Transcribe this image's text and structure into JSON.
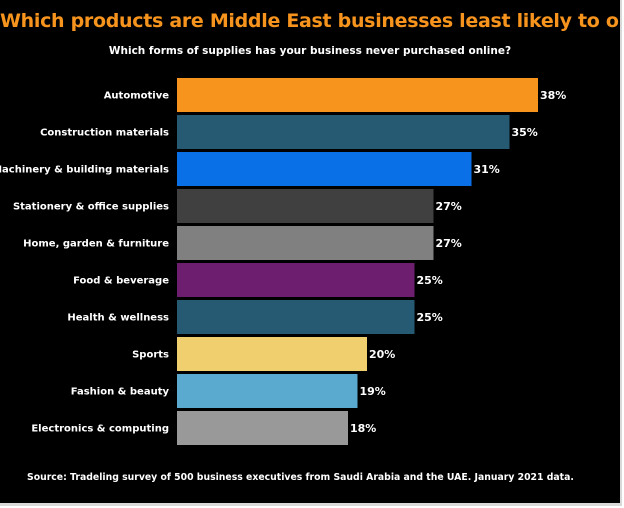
{
  "title": "Which products are Middle East businesses least likely to order online?",
  "subtitle": "Which forms of supplies has your business never purchased online?",
  "source": "Source: Tradeling survey of 500 business executives from Saudi Arabia and the UAE. January 2021 data.",
  "chart_data": {
    "type": "bar",
    "orientation": "horizontal",
    "title": "Which products are Middle East businesses least likely to order online?",
    "subtitle": "Which forms of supplies has your business never purchased online?",
    "categories": [
      "Automotive",
      "Construction materials",
      "Machinery & building materials",
      "Stationery & office supplies",
      "Home, garden & furniture",
      "Food & beverage",
      "Health & wellness",
      "Sports",
      "Fashion & beauty",
      "Electronics & computing"
    ],
    "values": [
      38,
      35,
      31,
      27,
      27,
      25,
      25,
      20,
      19,
      18
    ],
    "value_labels": [
      "38%",
      "35%",
      "31%",
      "27%",
      "27%",
      "25%",
      "25%",
      "20%",
      "19%",
      "18%"
    ],
    "colors": [
      "#f7941d",
      "#265a73",
      "#0a70e8",
      "#404040",
      "#808080",
      "#6d1e6e",
      "#265a73",
      "#f0cf6f",
      "#5aaad0",
      "#999999"
    ],
    "xlim": [
      0,
      38
    ],
    "grid": false,
    "legend": "none"
  }
}
